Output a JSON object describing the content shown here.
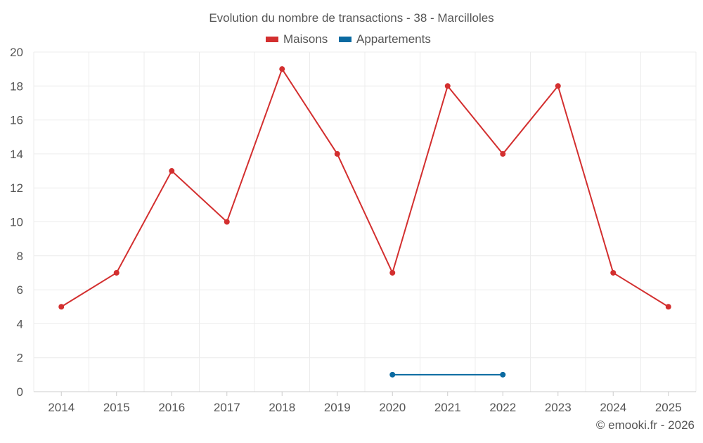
{
  "chart_data": {
    "type": "line",
    "title": "Evolution du nombre de transactions - 38 - Marcilloles",
    "categories": [
      "2014",
      "2015",
      "2016",
      "2017",
      "2018",
      "2019",
      "2020",
      "2021",
      "2022",
      "2023",
      "2024",
      "2025"
    ],
    "series": [
      {
        "name": "Maisons",
        "color": "#d32f2f",
        "values": [
          5,
          7,
          13,
          10,
          19,
          14,
          7,
          18,
          14,
          18,
          7,
          5
        ]
      },
      {
        "name": "Appartements",
        "color": "#0a6aa1",
        "values": [
          null,
          null,
          null,
          null,
          null,
          null,
          1,
          null,
          1,
          null,
          null,
          null
        ]
      }
    ],
    "ylim": [
      0,
      20
    ],
    "yticks": [
      0,
      2,
      4,
      6,
      8,
      10,
      12,
      14,
      16,
      18,
      20
    ],
    "grid": true,
    "legend_position": "top-center"
  },
  "credit": "© emooki.fr - 2026"
}
